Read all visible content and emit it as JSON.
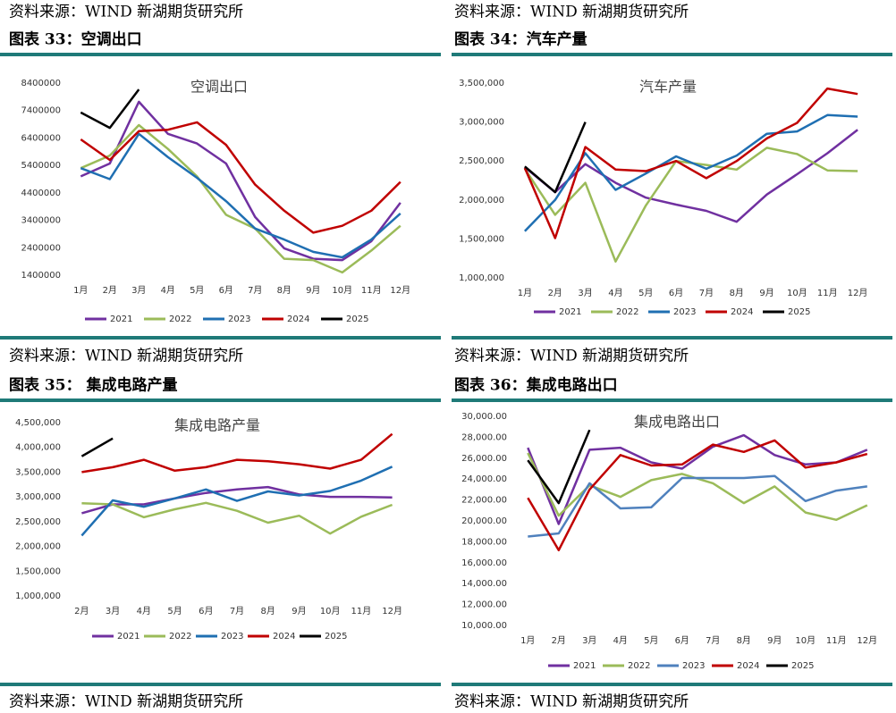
{
  "sources": [
    "资料来源：WIND 新湖期货研究所",
    "资料来源：WIND 新湖期货研究所",
    "资料来源：WIND 新湖期货研究所",
    "资料来源：WIND 新湖期货研究所",
    "资料来源：WIND 新湖期货研究所",
    "资料来源：WIND 新湖期货研究所"
  ],
  "chart_data": [
    {
      "type": "line",
      "figure_label": "图表 33：空调出口",
      "title": "空调出口",
      "categories": [
        "1月",
        "2月",
        "3月",
        "4月",
        "5月",
        "6月",
        "7月",
        "8月",
        "9月",
        "10月",
        "11月",
        "12月"
      ],
      "ylim": [
        1400000,
        8400000
      ],
      "yticks": [
        1400000,
        2400000,
        3400000,
        4400000,
        5400000,
        6400000,
        7400000,
        8400000
      ],
      "series": [
        {
          "name": "2021",
          "color": "#7030a0",
          "values": [
            5000000,
            5470000,
            7720000,
            6550000,
            6200000,
            5470000,
            3520000,
            2380000,
            2000000,
            1950000,
            2640000,
            4040000
          ]
        },
        {
          "name": "2022",
          "color": "#9bbb59",
          "values": [
            5300000,
            5760000,
            6870000,
            6000000,
            5000000,
            3600000,
            3100000,
            2000000,
            1950000,
            1500000,
            2300000,
            3200000
          ]
        },
        {
          "name": "2023",
          "color": "#1f6fb2",
          "values": [
            5300000,
            4900000,
            6550000,
            5700000,
            4950000,
            4100000,
            3100000,
            2700000,
            2250000,
            2050000,
            2700000,
            3650000
          ]
        },
        {
          "name": "2024",
          "color": "#c00000",
          "values": [
            6350000,
            5600000,
            6650000,
            6700000,
            6970000,
            6150000,
            4700000,
            3750000,
            2950000,
            3200000,
            3750000,
            4800000
          ]
        },
        {
          "name": "2025",
          "color": "#000000",
          "values": [
            7330000,
            6770000,
            8170000,
            null,
            null,
            null,
            null,
            null,
            null,
            null,
            null,
            null
          ]
        }
      ]
    },
    {
      "type": "line",
      "figure_label": "图表 34：汽车产量",
      "title": "汽车产量",
      "categories": [
        "1月",
        "2月",
        "3月",
        "4月",
        "5月",
        "6月",
        "7月",
        "8月",
        "9月",
        "10月",
        "11月",
        "12月"
      ],
      "ylim": [
        1000000,
        3500000
      ],
      "yticks": [
        {
          "value": 1000000,
          "label": "1,000,000"
        },
        {
          "value": 1500000,
          "label": "1,500,000"
        },
        {
          "value": 2000000,
          "label": "2,000,000"
        },
        {
          "value": 2500000,
          "label": "2,500,000"
        },
        {
          "value": 3000000,
          "label": "3,000,000"
        },
        {
          "value": 3500000,
          "label": "3,500,000"
        }
      ],
      "series": [
        {
          "name": "2021",
          "color": "#7030a0",
          "values": [
            2420000,
            2100000,
            2460000,
            2220000,
            2030000,
            1940000,
            1860000,
            1720000,
            2070000,
            2330000,
            2600000,
            2900000
          ]
        },
        {
          "name": "2022",
          "color": "#9bbb59",
          "values": [
            2400000,
            1810000,
            2220000,
            1210000,
            1930000,
            2500000,
            2450000,
            2390000,
            2670000,
            2590000,
            2380000,
            2370000
          ]
        },
        {
          "name": "2023",
          "color": "#1f6fb2",
          "values": [
            1600000,
            2000000,
            2600000,
            2130000,
            2340000,
            2560000,
            2400000,
            2570000,
            2850000,
            2880000,
            3090000,
            3070000
          ]
        },
        {
          "name": "2024",
          "color": "#c00000",
          "values": [
            2410000,
            1510000,
            2680000,
            2390000,
            2370000,
            2500000,
            2280000,
            2500000,
            2790000,
            2990000,
            3430000,
            3360000
          ]
        },
        {
          "name": "2025",
          "color": "#000000",
          "values": [
            2430000,
            2100000,
            3000000,
            null,
            null,
            null,
            null,
            null,
            null,
            null,
            null,
            null
          ]
        }
      ]
    },
    {
      "type": "line",
      "figure_label": "图表 35： 集成电路产量",
      "title": "集成电路产量",
      "categories": [
        "2月",
        "3月",
        "4月",
        "5月",
        "6月",
        "7月",
        "8月",
        "9月",
        "10月",
        "11月",
        "12月"
      ],
      "ylim": [
        1000000,
        4500000
      ],
      "yticks": [
        {
          "value": 1000000,
          "label": "1,000,000"
        },
        {
          "value": 1500000,
          "label": "1,500,000"
        },
        {
          "value": 2000000,
          "label": "2,000,000"
        },
        {
          "value": 2500000,
          "label": "2,500,000"
        },
        {
          "value": 3000000,
          "label": "3,000,000"
        },
        {
          "value": 3500000,
          "label": "3,500,000"
        },
        {
          "value": 4000000,
          "label": "4,000,000"
        },
        {
          "value": 4500000,
          "label": "4,500,000"
        }
      ],
      "series": [
        {
          "name": "2021",
          "color": "#7030a0",
          "values": [
            2670000,
            2850000,
            2850000,
            2970000,
            3080000,
            3150000,
            3200000,
            3050000,
            3000000,
            3000000,
            2990000
          ]
        },
        {
          "name": "2022",
          "color": "#9bbb59",
          "values": [
            2870000,
            2850000,
            2590000,
            2750000,
            2880000,
            2720000,
            2480000,
            2620000,
            2260000,
            2600000,
            2840000
          ]
        },
        {
          "name": "2023",
          "color": "#1f6fb2",
          "values": [
            2220000,
            2930000,
            2800000,
            2970000,
            3150000,
            2920000,
            3110000,
            3030000,
            3120000,
            3330000,
            3610000
          ]
        },
        {
          "name": "2024",
          "color": "#c00000",
          "values": [
            3500000,
            3600000,
            3750000,
            3530000,
            3600000,
            3750000,
            3720000,
            3660000,
            3570000,
            3750000,
            4270000
          ]
        },
        {
          "name": "2025",
          "color": "#000000",
          "values": [
            3820000,
            4180000,
            null,
            null,
            null,
            null,
            null,
            null,
            null,
            null,
            null
          ]
        }
      ]
    },
    {
      "type": "line",
      "figure_label": "图表 36：集成电路出口",
      "title": "集成电路出口",
      "categories": [
        "1月",
        "2月",
        "3月",
        "4月",
        "5月",
        "6月",
        "7月",
        "8月",
        "9月",
        "10月",
        "11月",
        "12月"
      ],
      "ylim": [
        10000,
        30000
      ],
      "yticks": [
        {
          "value": 10000,
          "label": "10,000.00"
        },
        {
          "value": 12000,
          "label": "12,000.00"
        },
        {
          "value": 14000,
          "label": "14,000.00"
        },
        {
          "value": 16000,
          "label": "16,000.00"
        },
        {
          "value": 18000,
          "label": "18,000.00"
        },
        {
          "value": 20000,
          "label": "20,000.00"
        },
        {
          "value": 22000,
          "label": "22,000.00"
        },
        {
          "value": 24000,
          "label": "24,000.00"
        },
        {
          "value": 26000,
          "label": "26,000.00"
        },
        {
          "value": 28000,
          "label": "28,000.00"
        },
        {
          "value": 30000,
          "label": "30,000.00"
        }
      ],
      "series": [
        {
          "name": "2021",
          "color": "#7030a0",
          "values": [
            27000,
            19700,
            26800,
            27000,
            25600,
            25000,
            27100,
            28200,
            26300,
            25400,
            25600,
            26800
          ]
        },
        {
          "name": "2022",
          "color": "#9bbb59",
          "values": [
            26500,
            20500,
            23400,
            22300,
            23900,
            24500,
            23600,
            21700,
            23300,
            20800,
            20100,
            21500
          ]
        },
        {
          "name": "2023",
          "color": "#4f81bd",
          "values": [
            18500,
            18800,
            23600,
            21200,
            21300,
            24100,
            24100,
            24100,
            24300,
            21900,
            22900,
            23300
          ]
        },
        {
          "name": "2024",
          "color": "#c00000",
          "values": [
            22200,
            17200,
            23000,
            26300,
            25300,
            25400,
            27300,
            26600,
            27700,
            25100,
            25600,
            26400
          ]
        },
        {
          "name": "2025",
          "color": "#000000",
          "values": [
            25800,
            21700,
            28700,
            null,
            null,
            null,
            null,
            null,
            null,
            null,
            null,
            null
          ]
        }
      ]
    }
  ]
}
